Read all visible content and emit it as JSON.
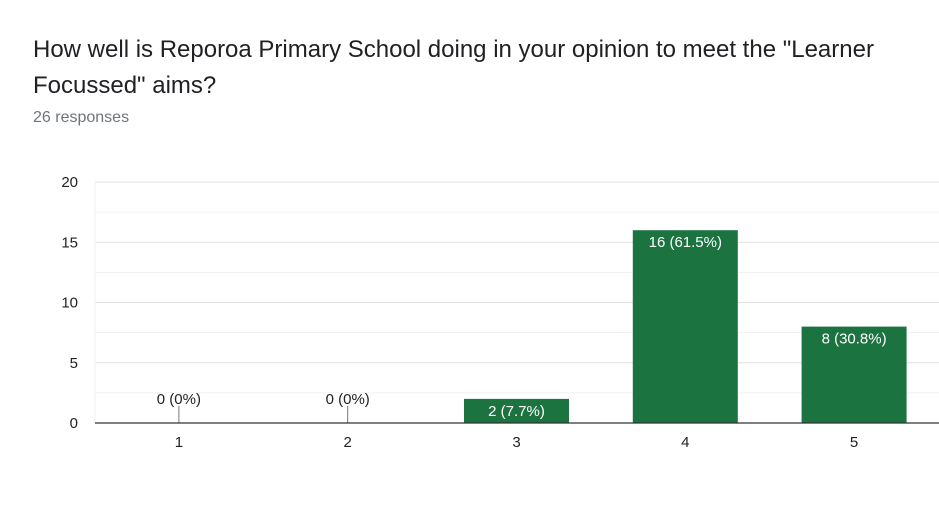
{
  "chart_data": {
    "type": "bar",
    "title": "How well is Reporoa Primary School doing in your opinion to meet the \"Learner Focussed\" aims?",
    "subtitle": "26 responses",
    "categories": [
      "1",
      "2",
      "3",
      "4",
      "5"
    ],
    "values": [
      0,
      0,
      2,
      16,
      8
    ],
    "data_labels": [
      "0 (0%)",
      "0 (0%)",
      "2 (7.7%)",
      "16 (61.5%)",
      "8 (30.8%)"
    ],
    "ylim": [
      0,
      20
    ],
    "yticks": [
      0,
      5,
      10,
      15,
      20
    ],
    "grid": true,
    "bar_color": "#1b7340",
    "xlabel": "",
    "ylabel": ""
  }
}
